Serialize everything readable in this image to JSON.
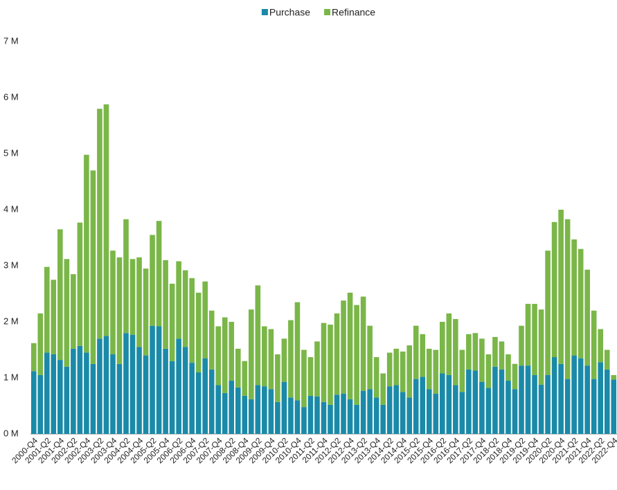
{
  "chart_data": {
    "type": "stacked-bar",
    "categories": [
      "2000-Q4",
      null,
      "2001-Q2",
      null,
      "2001-Q4",
      null,
      "2002-Q2",
      null,
      "2002-Q4",
      null,
      "2003-Q2",
      null,
      "2003-Q4",
      null,
      "2004-Q2",
      null,
      "2004-Q4",
      null,
      "2005-Q2",
      null,
      "2005-Q4",
      null,
      "2006-Q2",
      null,
      "2006-Q4",
      null,
      "2007-Q2",
      null,
      "2007-Q4",
      null,
      "2008-Q2",
      null,
      "2008-Q4",
      null,
      "2009-Q2",
      null,
      "2009-Q4",
      null,
      "2010-Q2",
      null,
      "2010-Q4",
      null,
      "2011-Q2",
      null,
      "2011-Q4",
      null,
      "2012-Q2",
      null,
      "2012-Q4",
      null,
      "2013-Q2",
      null,
      "2013-Q4",
      null,
      "2014-Q2",
      null,
      "2014-Q4",
      null,
      "2015-Q2",
      null,
      "2015-Q4",
      null,
      "2016-Q2",
      null,
      "2016-Q4",
      null,
      "2017-Q2",
      null,
      "2017-Q4",
      null,
      "2018-Q2",
      null,
      "2018-Q4",
      null,
      "2019-Q2",
      null,
      "2019-Q4",
      null,
      "2020-Q2",
      null,
      "2020-Q4",
      null,
      "2021-Q2",
      null,
      "2021-Q4",
      null,
      "2022-Q2",
      null,
      "2022-Q4"
    ],
    "series": [
      {
        "name": "Purchase",
        "color": "#1a8aa8",
        "values": [
          1.12,
          1.05,
          1.45,
          1.42,
          1.32,
          1.2,
          1.52,
          1.57,
          1.45,
          1.25,
          1.7,
          1.75,
          1.42,
          1.25,
          1.8,
          1.77,
          1.55,
          1.4,
          1.93,
          1.92,
          1.52,
          1.3,
          1.7,
          1.55,
          1.27,
          1.1,
          1.35,
          1.15,
          0.87,
          0.73,
          0.95,
          0.83,
          0.68,
          0.62,
          0.87,
          0.85,
          0.8,
          0.57,
          0.93,
          0.65,
          0.6,
          0.48,
          0.68,
          0.67,
          0.57,
          0.52,
          0.7,
          0.72,
          0.62,
          0.52,
          0.77,
          0.8,
          0.65,
          0.52,
          0.85,
          0.87,
          0.75,
          0.65,
          0.98,
          1.02,
          0.8,
          0.72,
          1.08,
          1.05,
          0.87,
          0.75,
          1.15,
          1.13,
          0.93,
          0.82,
          1.2,
          1.15,
          0.95,
          0.8,
          1.22,
          1.22,
          1.05,
          0.88,
          1.05,
          1.37,
          1.25,
          0.98,
          1.4,
          1.35,
          1.22,
          0.98,
          1.28,
          1.15,
          0.97
        ]
      },
      {
        "name": "Refinance",
        "color": "#7ab648",
        "values": [
          0.5,
          1.1,
          1.53,
          1.33,
          2.33,
          1.92,
          1.33,
          2.2,
          3.53,
          3.45,
          4.1,
          4.13,
          1.85,
          1.9,
          2.03,
          1.35,
          1.6,
          1.55,
          1.62,
          1.88,
          1.58,
          1.38,
          1.38,
          1.37,
          1.51,
          1.42,
          1.37,
          1.05,
          1.05,
          1.35,
          1.05,
          0.69,
          0.62,
          1.6,
          1.78,
          1.07,
          1.07,
          0.85,
          0.77,
          1.38,
          1.75,
          1.02,
          0.69,
          0.98,
          1.41,
          1.43,
          1.45,
          1.66,
          1.9,
          1.78,
          1.68,
          1.13,
          0.72,
          0.56,
          0.6,
          0.65,
          0.72,
          0.93,
          0.95,
          0.76,
          0.72,
          0.78,
          0.92,
          1.1,
          1.18,
          0.75,
          0.63,
          0.67,
          0.77,
          0.6,
          0.53,
          0.5,
          0.47,
          0.45,
          0.71,
          1.1,
          1.27,
          1.34,
          2.22,
          2.41,
          2.75,
          2.85,
          2.07,
          1.95,
          1.71,
          1.22,
          0.59,
          0.35,
          0.08
        ]
      }
    ],
    "ylim": [
      0,
      7
    ],
    "yticks": [
      {
        "value": 0,
        "label": "0 M"
      },
      {
        "value": 1,
        "label": "1 M"
      },
      {
        "value": 2,
        "label": "2 M"
      },
      {
        "value": 3,
        "label": "3 M"
      },
      {
        "value": 4,
        "label": "4 M"
      },
      {
        "value": 5,
        "label": "5 M"
      },
      {
        "value": 6,
        "label": "6 M"
      },
      {
        "value": 7,
        "label": "7 M"
      }
    ],
    "grid": false,
    "legend": "top"
  }
}
